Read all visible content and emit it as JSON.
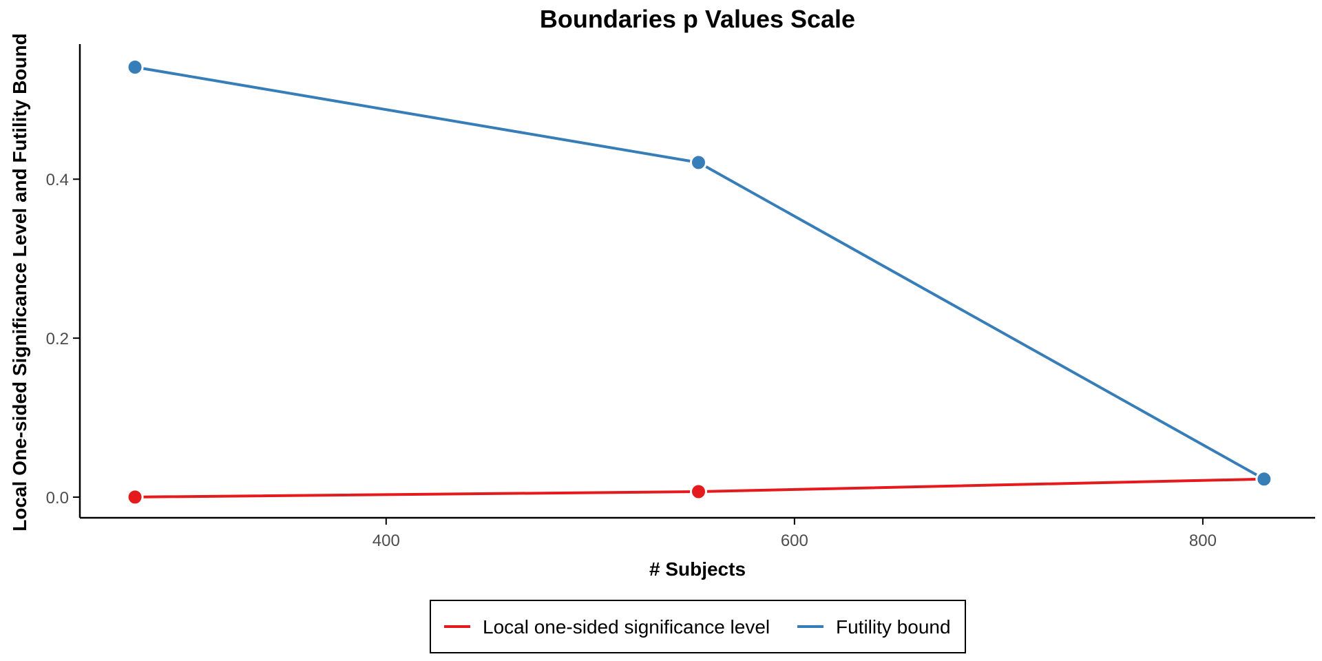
{
  "chart_data": {
    "type": "line",
    "title": "Boundaries p Values Scale",
    "xlabel": "# Subjects",
    "ylabel": "Local One-sided Significance Level and Futility Bound",
    "xlim": [
      250,
      855
    ],
    "ylim": [
      -0.026,
      0.57
    ],
    "x_ticks": [
      400,
      600,
      800
    ],
    "y_ticks": [
      0.0,
      0.2,
      0.4
    ],
    "x_tick_labels": [
      "400",
      "600",
      "800"
    ],
    "y_tick_labels": [
      "0.0",
      "0.2",
      "0.4"
    ],
    "legend_position": "bottom",
    "series": [
      {
        "name": "Local one-sided significance level",
        "color": "#e41a1c",
        "x": [
          277,
          553,
          830
        ],
        "y": [
          0.0001,
          0.0069,
          0.0227
        ]
      },
      {
        "name": "Futility bound",
        "color": "#377eb8",
        "x": [
          277,
          553,
          830
        ],
        "y": [
          0.541,
          0.421,
          0.0227
        ]
      }
    ]
  }
}
